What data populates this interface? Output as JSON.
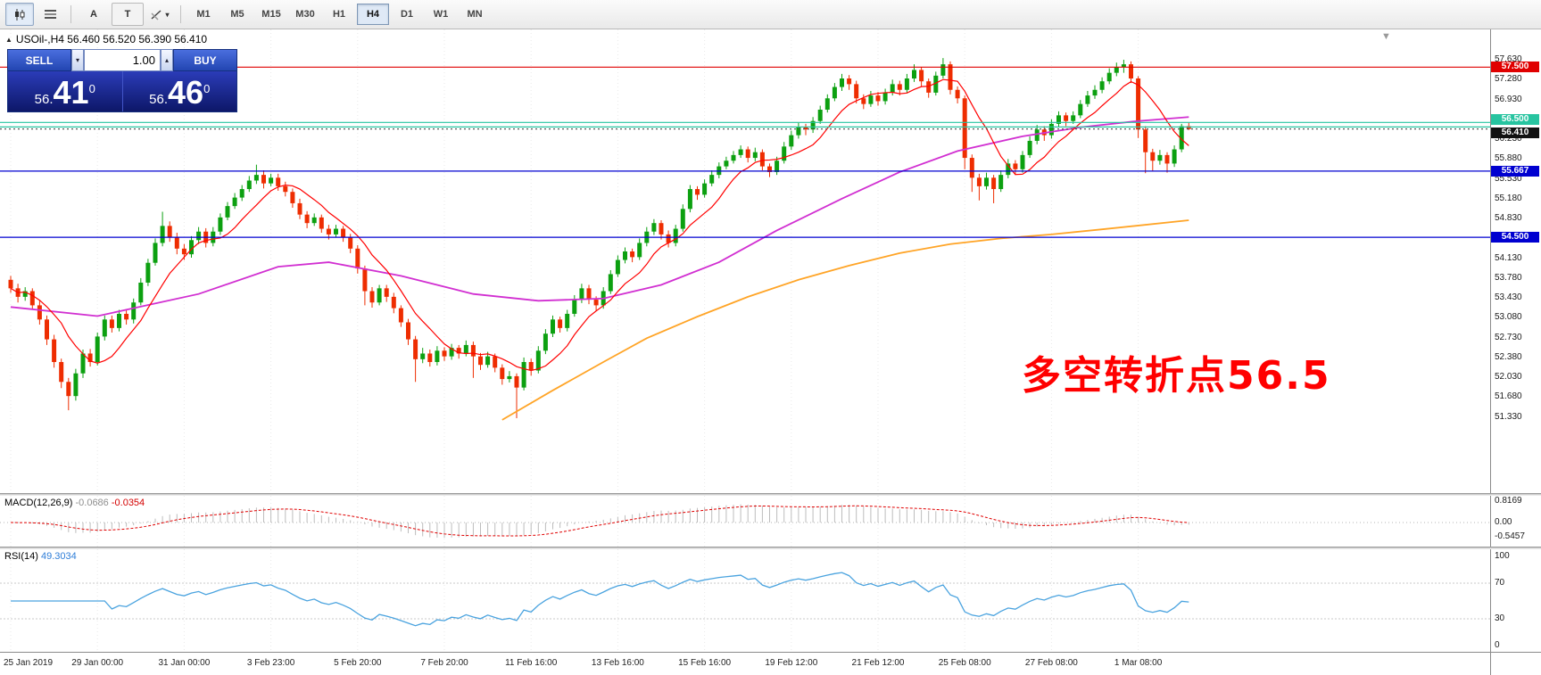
{
  "toolbar": {
    "text_tool": "A",
    "label_tool": "T",
    "timeframes": [
      "M1",
      "M5",
      "M15",
      "M30",
      "H1",
      "H4",
      "D1",
      "W1",
      "MN"
    ],
    "active_timeframe": "H4"
  },
  "chart": {
    "header_text": "USOil-,H4 56.460 56.520 56.390 56.410",
    "symbol": "USOil-",
    "timeframe": "H4",
    "ohlc": {
      "open": "56.460",
      "high": "56.520",
      "low": "56.390",
      "close": "56.410"
    },
    "annotation": {
      "text": "多空转折点56.5",
      "color": "#ff0000"
    },
    "shift_marker": "▼",
    "colors": {
      "bull": "#0ca010",
      "bear": "#ee2d01",
      "ma_fast": "#ff0000",
      "ma_mid": "#d12fd1",
      "ma_slow": "#ffa426",
      "macd_hist": "#bdbdbd",
      "macd_signal": "#e00000",
      "rsi": "#4aa3df"
    },
    "lines": [
      {
        "price": 57.5,
        "color": "#e00000",
        "dash": ""
      },
      {
        "price": 56.525,
        "color": "#27c4a0",
        "dash": ""
      },
      {
        "price": 56.445,
        "color": "#27c4a0",
        "dash": ""
      },
      {
        "price": 56.41,
        "color": "#555555",
        "dash": "2,3"
      },
      {
        "price": 55.667,
        "color": "#0000d0",
        "dash": ""
      },
      {
        "price": 54.5,
        "color": "#0000d0",
        "dash": ""
      }
    ],
    "badges": [
      {
        "text": "57.500",
        "price": 57.5,
        "bg": "#e00000",
        "nudge": 0
      },
      {
        "text": "56.500",
        "price": 56.5,
        "bg": "#27c4a0",
        "nudge": -5
      },
      {
        "text": "56.410",
        "price": 56.41,
        "bg": "#111111",
        "nudge": 4
      },
      {
        "text": "55.667",
        "price": 55.667,
        "bg": "#0000d0",
        "nudge": 0
      },
      {
        "text": "54.500",
        "price": 54.5,
        "bg": "#0000d0",
        "nudge": 0
      }
    ],
    "y_ticks": [
      "57.630",
      "57.280",
      "56.930",
      "56.230",
      "55.880",
      "55.530",
      "55.180",
      "54.830",
      "54.130",
      "53.780",
      "53.430",
      "53.080",
      "52.730",
      "52.380",
      "52.030",
      "51.680",
      "51.330"
    ]
  },
  "trade_panel": {
    "sell_label": "SELL",
    "buy_label": "BUY",
    "volume": "1.00",
    "sell_price": {
      "prefix": "56.",
      "pips": "41",
      "sup": "0"
    },
    "buy_price": {
      "prefix": "56.",
      "pips": "46",
      "sup": "0"
    }
  },
  "macd": {
    "label": "MACD(12,26,9)",
    "value_main": "-0.0686",
    "value_signal": "-0.0354",
    "params": {
      "fast": 12,
      "slow": 26,
      "signal": 9
    },
    "scale": [
      {
        "text": "0.8169",
        "v": 0.8169
      },
      {
        "text": "0.00",
        "v": 0
      },
      {
        "text": "-0.5457",
        "v": -0.5457
      }
    ]
  },
  "rsi": {
    "label": "RSI(14)",
    "value": "49.3034",
    "period": 14,
    "levels": [
      70,
      30
    ],
    "scale": [
      {
        "text": "100",
        "v": 100
      },
      {
        "text": "70",
        "v": 70
      },
      {
        "text": "30",
        "v": 30
      },
      {
        "text": "0",
        "v": 0
      }
    ]
  },
  "time_axis": {
    "label_every_n_bars": 12,
    "labels": [
      "25 Jan 2019",
      "29 Jan 00:00",
      "31 Jan 00:00",
      "3 Feb 23:00",
      "5 Feb 20:00",
      "7 Feb 20:00",
      "11 Feb 16:00",
      "13 Feb 16:00",
      "15 Feb 16:00",
      "19 Feb 12:00",
      "21 Feb 12:00",
      "25 Feb 08:00",
      "27 Feb 08:00",
      "1 Mar 08:00"
    ]
  },
  "chart_data": {
    "type": "candlestick",
    "symbol": "USOil-",
    "timeframe": "H4",
    "candles": [
      [
        53.75,
        53.82,
        53.52,
        53.6
      ],
      [
        53.6,
        53.68,
        53.35,
        53.45
      ],
      [
        53.45,
        53.62,
        53.38,
        53.55
      ],
      [
        53.55,
        53.6,
        53.22,
        53.3
      ],
      [
        53.3,
        53.38,
        52.96,
        53.05
      ],
      [
        53.05,
        53.12,
        52.6,
        52.7
      ],
      [
        52.7,
        52.78,
        52.2,
        52.3
      ],
      [
        52.3,
        52.36,
        51.84,
        51.95
      ],
      [
        51.95,
        52.02,
        51.45,
        51.7
      ],
      [
        51.7,
        52.18,
        51.62,
        52.1
      ],
      [
        52.1,
        52.52,
        52.02,
        52.45
      ],
      [
        52.45,
        52.53,
        52.22,
        52.3
      ],
      [
        52.3,
        52.82,
        52.24,
        52.75
      ],
      [
        52.75,
        53.12,
        52.68,
        53.05
      ],
      [
        53.05,
        53.12,
        52.82,
        52.9
      ],
      [
        52.9,
        53.22,
        52.84,
        53.15
      ],
      [
        53.15,
        53.22,
        52.96,
        53.05
      ],
      [
        53.05,
        53.42,
        52.98,
        53.35
      ],
      [
        53.35,
        53.78,
        53.3,
        53.7
      ],
      [
        53.7,
        54.12,
        53.64,
        54.05
      ],
      [
        54.05,
        54.48,
        54.0,
        54.4
      ],
      [
        54.4,
        54.95,
        54.34,
        54.7
      ],
      [
        54.7,
        54.78,
        54.42,
        54.5
      ],
      [
        54.5,
        54.58,
        54.2,
        54.3
      ],
      [
        54.3,
        54.38,
        54.1,
        54.2
      ],
      [
        54.2,
        54.52,
        54.14,
        54.45
      ],
      [
        54.45,
        54.68,
        54.38,
        54.6
      ],
      [
        54.6,
        54.66,
        54.32,
        54.4
      ],
      [
        54.4,
        54.68,
        54.34,
        54.6
      ],
      [
        54.6,
        54.92,
        54.54,
        54.85
      ],
      [
        54.85,
        55.12,
        54.8,
        55.05
      ],
      [
        55.05,
        55.28,
        55.0,
        55.2
      ],
      [
        55.2,
        55.42,
        55.14,
        55.35
      ],
      [
        55.35,
        55.58,
        55.3,
        55.5
      ],
      [
        55.5,
        55.78,
        55.44,
        55.6
      ],
      [
        55.6,
        55.68,
        55.36,
        55.45
      ],
      [
        55.45,
        55.62,
        55.4,
        55.55
      ],
      [
        55.55,
        55.62,
        55.32,
        55.4
      ],
      [
        55.4,
        55.48,
        55.22,
        55.3
      ],
      [
        55.3,
        55.36,
        55.02,
        55.1
      ],
      [
        55.1,
        55.18,
        54.82,
        54.9
      ],
      [
        54.9,
        54.96,
        54.66,
        54.75
      ],
      [
        54.75,
        54.92,
        54.7,
        54.85
      ],
      [
        54.85,
        54.9,
        54.58,
        54.65
      ],
      [
        54.65,
        54.72,
        54.46,
        54.55
      ],
      [
        54.55,
        54.72,
        54.5,
        54.65
      ],
      [
        54.65,
        54.7,
        54.42,
        54.5
      ],
      [
        54.5,
        54.56,
        54.22,
        54.3
      ],
      [
        54.3,
        54.36,
        53.86,
        53.95
      ],
      [
        53.95,
        54.0,
        53.3,
        53.55
      ],
      [
        53.55,
        53.62,
        53.26,
        53.35
      ],
      [
        53.35,
        53.66,
        53.3,
        53.6
      ],
      [
        53.6,
        53.66,
        53.36,
        53.45
      ],
      [
        53.45,
        53.52,
        53.16,
        53.25
      ],
      [
        53.25,
        53.3,
        52.92,
        53.0
      ],
      [
        53.0,
        53.06,
        52.6,
        52.7
      ],
      [
        52.7,
        52.76,
        51.95,
        52.35
      ],
      [
        52.35,
        52.55,
        52.28,
        52.45
      ],
      [
        52.45,
        52.52,
        52.22,
        52.3
      ],
      [
        52.3,
        52.58,
        52.24,
        52.5
      ],
      [
        52.5,
        52.56,
        52.32,
        52.4
      ],
      [
        52.4,
        52.62,
        52.34,
        52.55
      ],
      [
        52.55,
        52.6,
        52.36,
        52.45
      ],
      [
        52.45,
        52.68,
        52.4,
        52.6
      ],
      [
        52.6,
        52.66,
        52.02,
        52.4
      ],
      [
        52.4,
        52.46,
        52.16,
        52.25
      ],
      [
        52.25,
        52.48,
        52.2,
        52.4
      ],
      [
        52.4,
        52.45,
        52.12,
        52.2
      ],
      [
        52.2,
        52.26,
        51.9,
        52.0
      ],
      [
        52.0,
        52.14,
        51.94,
        52.05
      ],
      [
        52.05,
        52.1,
        51.31,
        51.85
      ],
      [
        51.85,
        52.38,
        51.8,
        52.3
      ],
      [
        52.3,
        52.36,
        52.06,
        52.15
      ],
      [
        52.15,
        52.58,
        52.1,
        52.5
      ],
      [
        52.5,
        52.88,
        52.44,
        52.8
      ],
      [
        52.8,
        53.12,
        52.74,
        53.05
      ],
      [
        53.05,
        53.1,
        52.82,
        52.9
      ],
      [
        52.9,
        53.22,
        52.84,
        53.15
      ],
      [
        53.15,
        53.48,
        53.1,
        53.4
      ],
      [
        53.4,
        53.68,
        53.34,
        53.6
      ],
      [
        53.6,
        53.66,
        53.32,
        53.4
      ],
      [
        53.4,
        53.46,
        53.2,
        53.3
      ],
      [
        53.3,
        53.62,
        53.24,
        53.55
      ],
      [
        53.55,
        53.92,
        53.5,
        53.85
      ],
      [
        53.85,
        54.18,
        53.8,
        54.1
      ],
      [
        54.1,
        54.32,
        54.04,
        54.25
      ],
      [
        54.25,
        54.3,
        54.06,
        54.15
      ],
      [
        54.15,
        54.48,
        54.1,
        54.4
      ],
      [
        54.4,
        54.68,
        54.34,
        54.6
      ],
      [
        54.6,
        54.82,
        54.54,
        54.75
      ],
      [
        54.75,
        54.8,
        54.46,
        54.55
      ],
      [
        54.55,
        54.62,
        54.32,
        54.4
      ],
      [
        54.4,
        54.72,
        54.34,
        54.65
      ],
      [
        54.65,
        55.08,
        54.6,
        55.0
      ],
      [
        55.0,
        55.42,
        54.94,
        55.35
      ],
      [
        55.35,
        55.4,
        55.16,
        55.25
      ],
      [
        55.25,
        55.52,
        55.2,
        55.45
      ],
      [
        55.45,
        55.68,
        55.4,
        55.6
      ],
      [
        55.6,
        55.82,
        55.54,
        55.75
      ],
      [
        55.75,
        55.92,
        55.7,
        55.85
      ],
      [
        55.85,
        56.02,
        55.8,
        55.95
      ],
      [
        55.95,
        56.12,
        55.9,
        56.05
      ],
      [
        56.05,
        56.1,
        55.82,
        55.9
      ],
      [
        55.9,
        56.08,
        55.84,
        56.0
      ],
      [
        56.0,
        56.05,
        55.68,
        55.75
      ],
      [
        55.75,
        55.8,
        55.56,
        55.65
      ],
      [
        55.65,
        55.92,
        55.6,
        55.85
      ],
      [
        55.85,
        56.18,
        55.8,
        56.1
      ],
      [
        56.1,
        56.38,
        56.04,
        56.3
      ],
      [
        56.3,
        56.52,
        56.24,
        56.45
      ],
      [
        56.45,
        56.5,
        56.3,
        56.4
      ],
      [
        56.4,
        56.62,
        56.34,
        56.55
      ],
      [
        56.55,
        56.82,
        56.5,
        56.75
      ],
      [
        56.75,
        57.02,
        56.7,
        56.95
      ],
      [
        56.95,
        57.22,
        56.9,
        57.15
      ],
      [
        57.15,
        57.38,
        57.08,
        57.3
      ],
      [
        57.3,
        57.36,
        57.1,
        57.2
      ],
      [
        57.2,
        57.26,
        56.86,
        56.95
      ],
      [
        56.95,
        57.02,
        56.76,
        56.85
      ],
      [
        56.85,
        57.08,
        56.8,
        57.0
      ],
      [
        57.0,
        57.06,
        56.82,
        56.9
      ],
      [
        56.9,
        57.12,
        56.84,
        57.05
      ],
      [
        57.05,
        57.28,
        57.0,
        57.2
      ],
      [
        57.2,
        57.26,
        57.0,
        57.1
      ],
      [
        57.1,
        57.38,
        57.04,
        57.3
      ],
      [
        57.3,
        57.55,
        57.24,
        57.45
      ],
      [
        57.45,
        57.5,
        57.16,
        57.25
      ],
      [
        57.25,
        57.3,
        56.96,
        57.05
      ],
      [
        57.05,
        57.42,
        57.0,
        57.35
      ],
      [
        57.35,
        57.66,
        57.3,
        57.55
      ],
      [
        57.55,
        57.6,
        57.02,
        57.1
      ],
      [
        57.1,
        57.16,
        56.86,
        56.95
      ],
      [
        56.95,
        57.0,
        55.7,
        55.9
      ],
      [
        55.9,
        55.96,
        55.3,
        55.55
      ],
      [
        55.55,
        55.62,
        55.15,
        55.4
      ],
      [
        55.4,
        55.64,
        55.34,
        55.55
      ],
      [
        55.55,
        55.6,
        55.1,
        55.35
      ],
      [
        55.35,
        55.68,
        55.3,
        55.6
      ],
      [
        55.6,
        55.88,
        55.54,
        55.8
      ],
      [
        55.8,
        55.86,
        55.6,
        55.7
      ],
      [
        55.7,
        56.02,
        55.64,
        55.95
      ],
      [
        55.95,
        56.28,
        55.9,
        56.2
      ],
      [
        56.2,
        56.48,
        56.14,
        56.4
      ],
      [
        56.4,
        56.46,
        56.2,
        56.3
      ],
      [
        56.3,
        56.58,
        56.24,
        56.5
      ],
      [
        56.5,
        56.72,
        56.44,
        56.65
      ],
      [
        56.65,
        56.7,
        56.46,
        56.55
      ],
      [
        56.55,
        56.72,
        56.5,
        56.65
      ],
      [
        56.65,
        56.92,
        56.6,
        56.85
      ],
      [
        56.85,
        57.08,
        56.8,
        57.0
      ],
      [
        57.0,
        57.18,
        56.94,
        57.1
      ],
      [
        57.1,
        57.32,
        57.04,
        57.25
      ],
      [
        57.25,
        57.48,
        57.2,
        57.4
      ],
      [
        57.4,
        57.58,
        57.34,
        57.5
      ],
      [
        57.5,
        57.63,
        57.4,
        57.55
      ],
      [
        57.55,
        57.6,
        57.22,
        57.3
      ],
      [
        57.3,
        57.34,
        56.25,
        56.4
      ],
      [
        56.4,
        56.46,
        55.63,
        56.0
      ],
      [
        56.0,
        56.06,
        55.66,
        55.85
      ],
      [
        55.85,
        56.04,
        55.78,
        55.95
      ],
      [
        55.95,
        56.0,
        55.64,
        55.8
      ],
      [
        55.8,
        56.12,
        55.74,
        56.05
      ],
      [
        56.05,
        56.5,
        56.0,
        56.46
      ],
      [
        56.46,
        56.52,
        56.39,
        56.41
      ]
    ],
    "overlays": {
      "ma_fast_period": 8,
      "ma_mid": [
        [
          0,
          53.27
        ],
        [
          12,
          53.11
        ],
        [
          26,
          53.5
        ],
        [
          37,
          53.98
        ],
        [
          44,
          54.06
        ],
        [
          54,
          53.82
        ],
        [
          64,
          53.5
        ],
        [
          73,
          53.38
        ],
        [
          82,
          53.42
        ],
        [
          90,
          53.66
        ],
        [
          98,
          54.06
        ],
        [
          106,
          54.62
        ],
        [
          115,
          55.18
        ],
        [
          123,
          55.65
        ],
        [
          131,
          56.02
        ],
        [
          140,
          56.28
        ],
        [
          148,
          56.44
        ],
        [
          156,
          56.55
        ],
        [
          163,
          56.62
        ]
      ],
      "ma_slow": [
        [
          68,
          51.28
        ],
        [
          75,
          51.8
        ],
        [
          82,
          52.3
        ],
        [
          88,
          52.72
        ],
        [
          95,
          53.1
        ],
        [
          102,
          53.45
        ],
        [
          109,
          53.75
        ],
        [
          116,
          54.0
        ],
        [
          123,
          54.22
        ],
        [
          130,
          54.38
        ],
        [
          137,
          54.48
        ],
        [
          144,
          54.55
        ],
        [
          151,
          54.64
        ],
        [
          163,
          54.8
        ]
      ]
    }
  }
}
